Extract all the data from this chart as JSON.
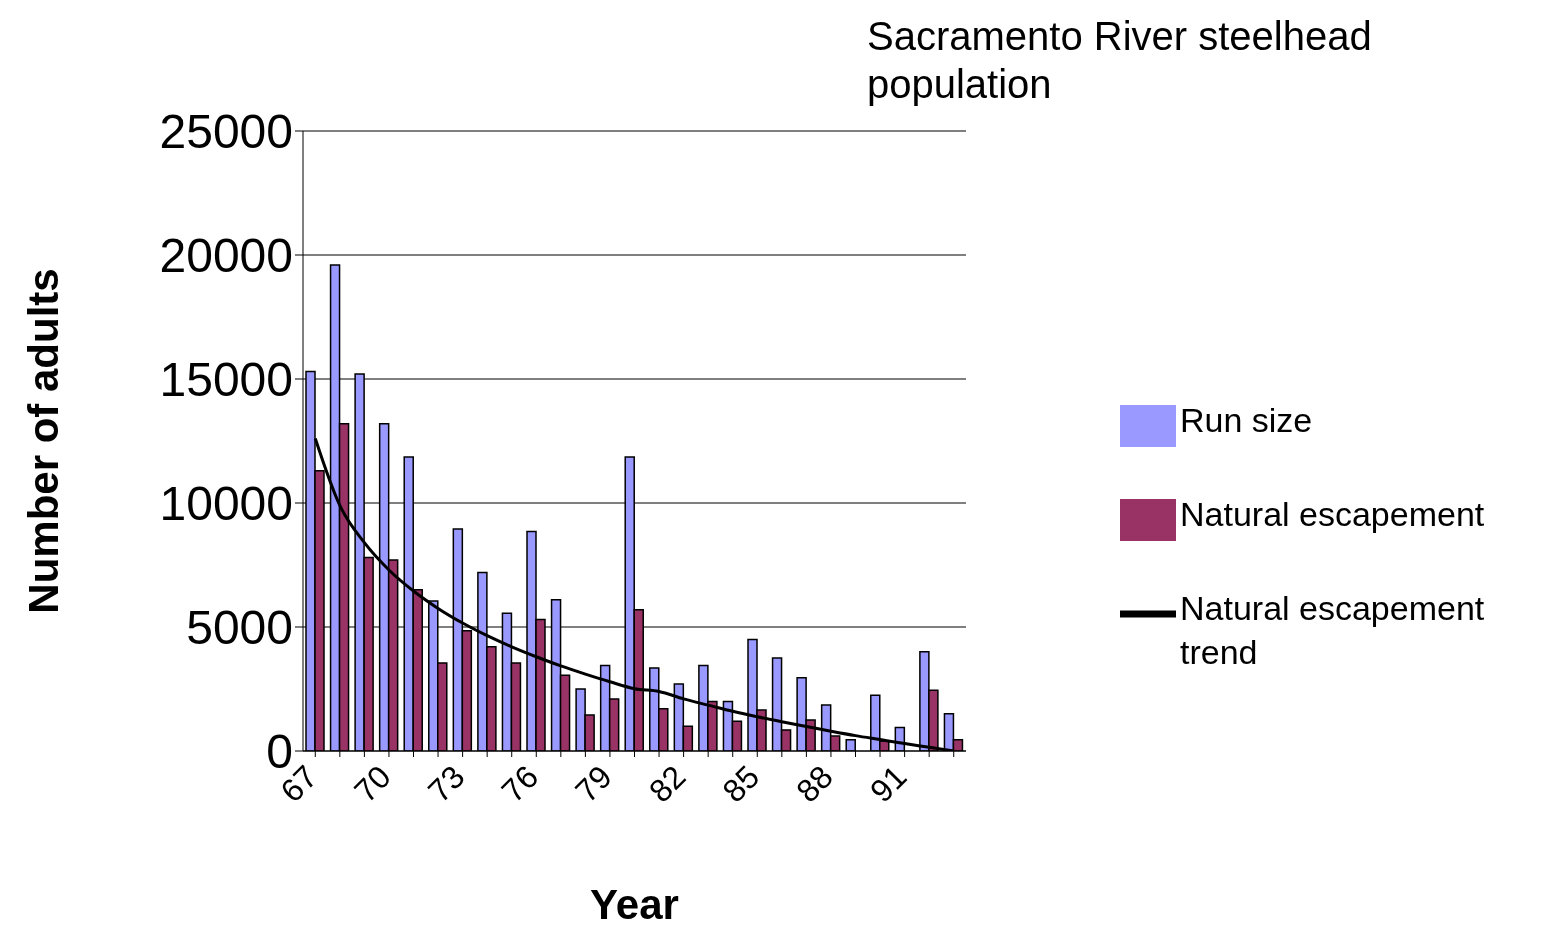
{
  "chart_data": {
    "type": "bar",
    "title": "Sacramento River steelhead population",
    "xlabel": "Year",
    "ylabel": "Number of adults",
    "categories": [
      "67",
      null,
      null,
      "70",
      null,
      null,
      "73",
      null,
      null,
      "76",
      null,
      null,
      "79",
      null,
      null,
      "82",
      null,
      null,
      "85",
      null,
      null,
      "88",
      null,
      null,
      "91",
      null,
      null
    ],
    "series": [
      {
        "name": "Run size",
        "color": "#9999ff",
        "values": [
          15300,
          19600,
          15200,
          13200,
          11850,
          6050,
          8950,
          7200,
          5550,
          8850,
          6100,
          2500,
          3450,
          11850,
          3350,
          2700,
          3450,
          2000,
          4500,
          3750,
          2950,
          1850,
          450,
          2250,
          950,
          4000,
          1500
        ]
      },
      {
        "name": "Natural escapement",
        "color": "#993366",
        "values": [
          11300,
          13200,
          7800,
          7700,
          6500,
          3550,
          4850,
          4200,
          3550,
          5300,
          3050,
          1450,
          2100,
          5700,
          1700,
          1000,
          2000,
          1200,
          1650,
          850,
          1250,
          600,
          0,
          400,
          0,
          2450,
          450
        ]
      },
      {
        "name": "Natural escapement trend",
        "type": "line",
        "color": "#000000",
        "values": [
          12600,
          9900,
          8400,
          7300,
          6450,
          5750,
          5160,
          4650,
          4200,
          3800,
          3430,
          3100,
          2790,
          2510,
          2400,
          2100,
          1850,
          1600,
          1380,
          1180,
          990,
          800,
          620,
          460,
          300,
          150,
          0
        ]
      }
    ],
    "ylim": [
      0,
      25000
    ],
    "yticks": [
      0,
      5000,
      10000,
      15000,
      20000,
      25000
    ],
    "grid": "y",
    "legend": "right",
    "marker": "none",
    "line_style": "solid"
  }
}
